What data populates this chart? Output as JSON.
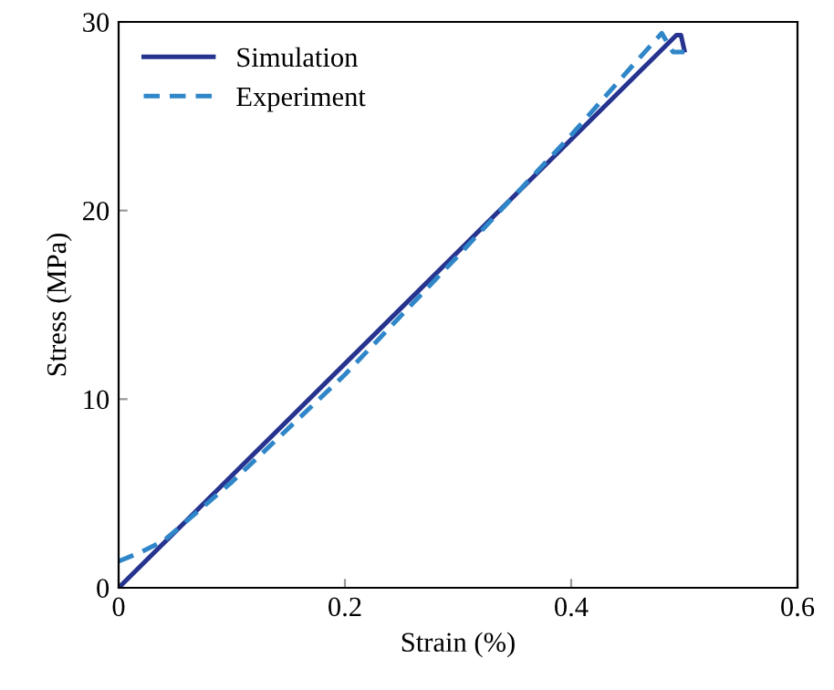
{
  "chart_data": {
    "type": "line",
    "xlabel": "Strain (%)",
    "ylabel": "Stress (MPa)",
    "xlim": [
      0,
      0.6
    ],
    "ylim": [
      0,
      30
    ],
    "xticks": [
      0,
      0.2,
      0.4,
      0.6
    ],
    "yticks": [
      0,
      10,
      20,
      30
    ],
    "grid": false,
    "legend": "top left",
    "marker": "none",
    "series": [
      {
        "name": "Simulation",
        "color": "#26338f",
        "line_style": "solid",
        "x": [
          0,
          0.25,
          0.493,
          0.497,
          0.5
        ],
        "values": [
          0,
          14.85,
          29.3,
          29.3,
          28.5
        ]
      },
      {
        "name": "Experiment",
        "color": "#2f86c8",
        "line_style": "dashed",
        "x": [
          0,
          0.02,
          0.04,
          0.1,
          0.2,
          0.3,
          0.4,
          0.45,
          0.48,
          0.49,
          0.5
        ],
        "values": [
          1.4,
          1.9,
          2.5,
          5.6,
          11.3,
          17.6,
          24.0,
          27.4,
          29.4,
          28.4,
          28.4
        ]
      }
    ]
  }
}
